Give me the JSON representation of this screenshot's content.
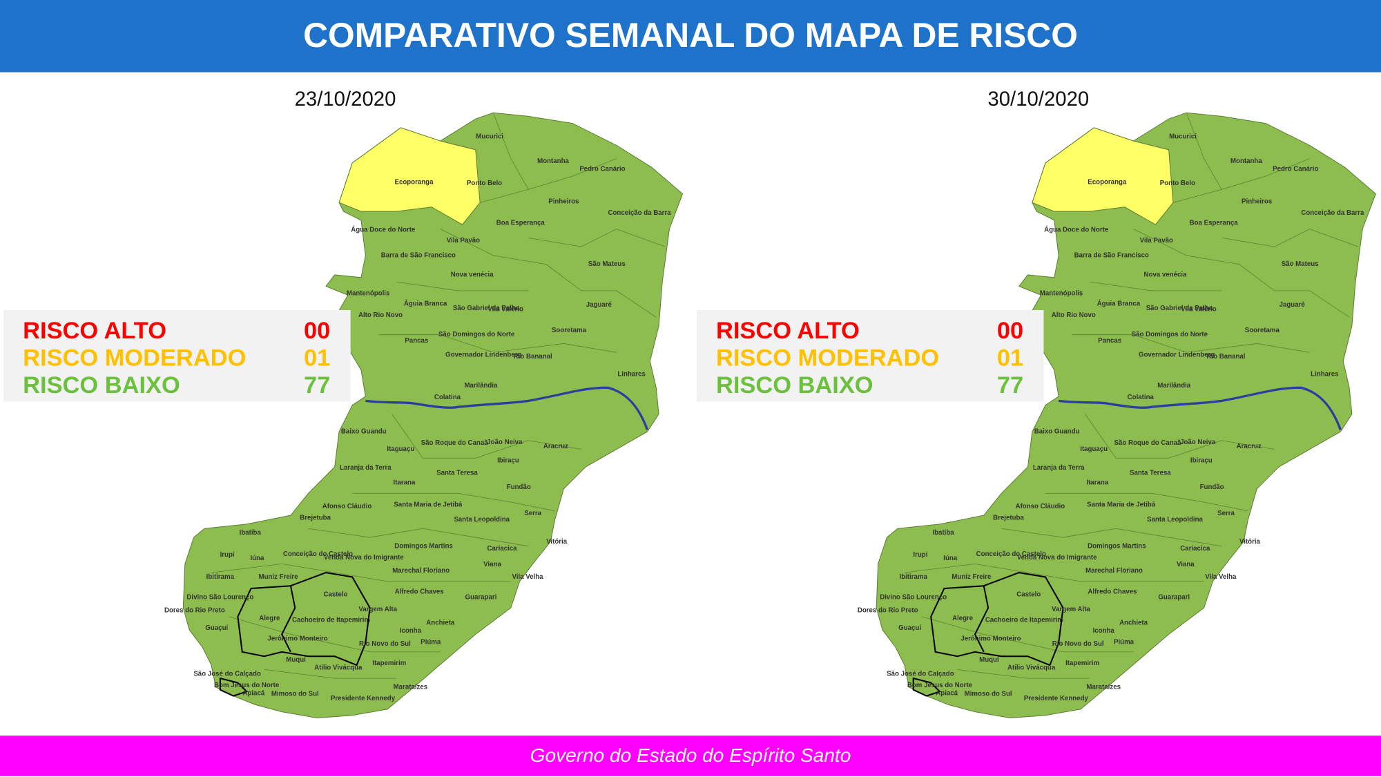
{
  "header": {
    "title": "COMPARATIVO SEMANAL DO MAPA DE RISCO"
  },
  "maps": [
    {
      "date": "23/10/2020",
      "legend": [
        {
          "label": "RISCO ALTO",
          "count": "00",
          "color": "#ff0000"
        },
        {
          "label": "RISCO MODERADO",
          "count": "01",
          "color": "#ffc000"
        },
        {
          "label": "RISCO BAIXO",
          "count": "77",
          "color": "#6cc13c"
        }
      ]
    },
    {
      "date": "30/10/2020",
      "legend": [
        {
          "label": "RISCO ALTO",
          "count": "00",
          "color": "#ff0000"
        },
        {
          "label": "RISCO MODERADO",
          "count": "01",
          "color": "#ffc000"
        },
        {
          "label": "RISCO BAIXO",
          "count": "77",
          "color": "#6cc13c"
        }
      ]
    }
  ],
  "municipalities": [
    "Mucurici",
    "Montanha",
    "Pedro Canário",
    "Ecoporanga",
    "Ponto Belo",
    "Pinheiros",
    "Conceição da Barra",
    "Boa Esperança",
    "Água Doce do Norte",
    "Vila Pavão",
    "Barra de São Francisco",
    "São Mateus",
    "Nova venécia",
    "Mantenópolis",
    "Águia Branca",
    "São Gabriel da Palha",
    "Vila Valério",
    "Jaguaré",
    "Alto Rio Novo",
    "Sooretama",
    "Pancas",
    "São Domingos do Norte",
    "Governador Lindenberg",
    "Rio Bananal",
    "Linhares",
    "Marilândia",
    "Colatina",
    "Baixo Guandu",
    "São Roque do Canaã",
    "João Neiva",
    "Aracruz",
    "Itaguaçu",
    "Ibiraçu",
    "Laranja da Terra",
    "Santa Teresa",
    "Itarana",
    "Fundão",
    "Santa Maria de Jetibá",
    "Afonso Cláudio",
    "Serra",
    "Brejetuba",
    "Santa Leopoldina",
    "Ibatiba",
    "Vitória",
    "Domingos Martins",
    "Irupi",
    "Iúna",
    "Conceição do Castelo",
    "Venda Nova do Imigrante",
    "Cariacica",
    "Viana",
    "Marechal Floriano",
    "Ibitirama",
    "Muniz Freire",
    "Vila Velha",
    "Divino São Lourenço",
    "Alfredo Chaves",
    "Castelo",
    "Guarapari",
    "Dores do Rio Preto",
    "Vargem Alta",
    "Alegre",
    "Cachoeiro de Itapemirim",
    "Guaçuí",
    "Anchieta",
    "Jerônimo Monteiro",
    "Iconha",
    "Rio Novo do Sul",
    "Piúma",
    "Muquí",
    "Atilio Vivácqua",
    "Itapemirim",
    "São José do Calçado",
    "Bom Jesus do Norte",
    "Apiacá",
    "Mimoso do Sul",
    "Marataízes",
    "Presidente Kennedy"
  ],
  "footer": {
    "text": "Governo do Estado do Espírito Santo"
  }
}
